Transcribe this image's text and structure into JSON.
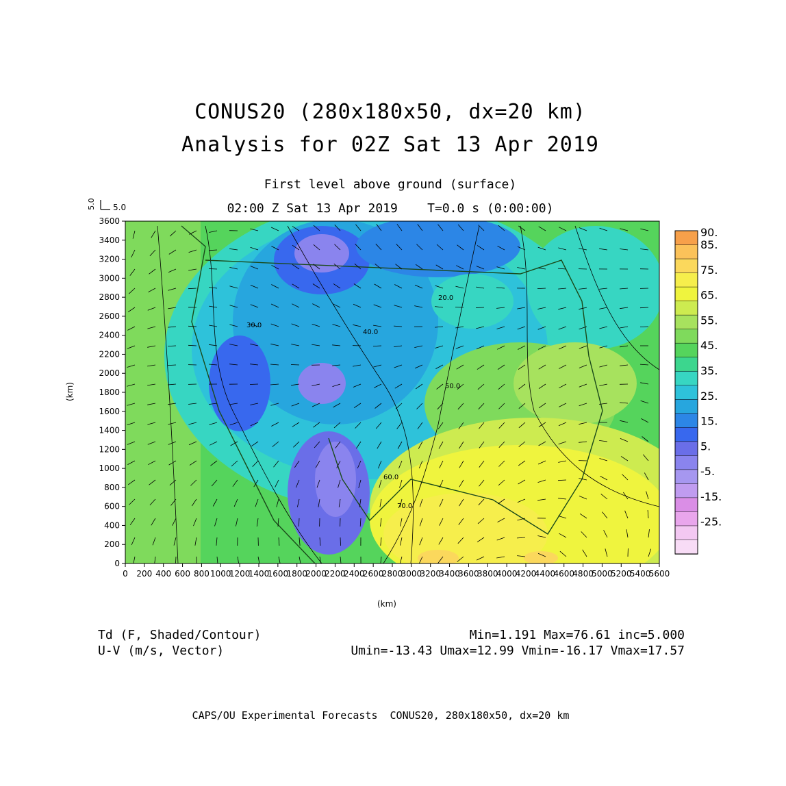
{
  "title": {
    "line1": "CONUS20 (280x180x50, dx=20 km)",
    "line2": "Analysis for 02Z Sat 13 Apr 2019"
  },
  "subtitle": {
    "level": "First level above ground (surface)",
    "time": "02:00 Z Sat 13 Apr 2019    T=0.0 s (0:00:00)"
  },
  "vector_ref": {
    "vertical": "5.0",
    "horizontal": "5.0"
  },
  "axes": {
    "xlabel": "(km)",
    "ylabel": "(km)",
    "x_ticks": [
      "0",
      "200",
      "400",
      "600",
      "800",
      "1000",
      "1200",
      "1400",
      "1600",
      "1800",
      "2000",
      "2200",
      "2400",
      "2600",
      "2800",
      "3000",
      "3200",
      "3400",
      "3600",
      "3800",
      "4000",
      "4200",
      "4400",
      "4600",
      "4800",
      "5000",
      "5200",
      "5400",
      "5600"
    ],
    "y_ticks": [
      "0",
      "200",
      "400",
      "600",
      "800",
      "1000",
      "1200",
      "1400",
      "1600",
      "1800",
      "2000",
      "2200",
      "2400",
      "2600",
      "2800",
      "3000",
      "3200",
      "3400",
      "3600"
    ],
    "xlim": [
      0,
      5600
    ],
    "ylim": [
      0,
      3600
    ]
  },
  "colorbar": {
    "labels": [
      "90.",
      "85.",
      "75.",
      "65.",
      "55.",
      "45.",
      "35.",
      "25.",
      "15.",
      "5.",
      "-5.",
      "-15.",
      "-25."
    ],
    "colors": [
      "#f7a04a",
      "#fbc25a",
      "#fbd85c",
      "#f6ee4c",
      "#eff43e",
      "#cdeb50",
      "#a7e25e",
      "#7fda5c",
      "#55d45c",
      "#3cd68e",
      "#37d6c2",
      "#2ec2da",
      "#27a6de",
      "#2c86e6",
      "#3868ee",
      "#6a6ee8",
      "#8a84ee",
      "#a697f0",
      "#c09cf0",
      "#da8ee6",
      "#e9a6ec",
      "#f3c8f2",
      "#f8dcf6"
    ]
  },
  "contour_labels": [
    "30.0",
    "40.0",
    "50.0",
    "60.0",
    "70.0",
    "20.0"
  ],
  "footer": {
    "field1": "Td (F, Shaded/Contour)",
    "field2": "U-V (m/s, Vector)",
    "stats1": "Min=1.191 Max=76.61 inc=5.000",
    "stats2": "Umin=-13.43 Umax=12.99 Vmin=-16.17 Vmax=17.57",
    "credit": "CAPS/OU Experimental Forecasts  CONUS20, 280x180x50, dx=20 km"
  }
}
